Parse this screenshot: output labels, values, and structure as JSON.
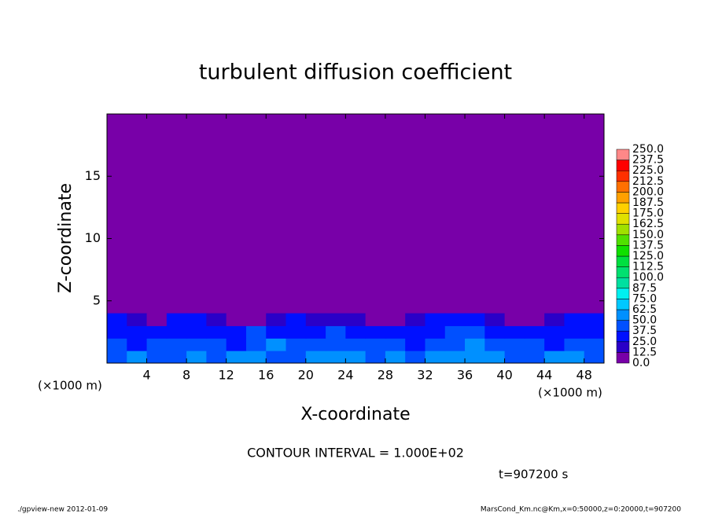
{
  "chart_data": {
    "type": "heatmap",
    "title": "turbulent diffusion coefficient",
    "x_label": "X-coordinate",
    "y_label": "Z-coordinate",
    "x_unit_label": "(×1000 m)",
    "y_unit_label": "(×1000 m)",
    "xlim": [
      0,
      50
    ],
    "ylim": [
      0,
      20
    ],
    "xticks": [
      4,
      8,
      12,
      16,
      20,
      24,
      28,
      32,
      36,
      40,
      44,
      48
    ],
    "yticks": [
      5,
      10,
      15
    ],
    "x": [
      1,
      3,
      5,
      7,
      9,
      11,
      13,
      15,
      17,
      19,
      21,
      23,
      25,
      27,
      29,
      31,
      33,
      35,
      37,
      39,
      41,
      43,
      45,
      47,
      49
    ],
    "y": [
      0.5,
      1.5,
      2.5,
      3.5
    ],
    "z": [
      [
        45,
        50,
        40,
        48,
        52,
        45,
        55,
        50,
        42,
        48,
        55,
        60,
        50,
        45,
        52,
        48,
        50,
        55,
        58,
        50,
        45,
        48,
        52,
        50,
        46
      ],
      [
        40,
        35,
        45,
        38,
        40,
        42,
        35,
        45,
        50,
        40,
        38,
        45,
        40,
        42,
        38,
        35,
        40,
        48,
        50,
        42,
        40,
        38,
        35,
        40,
        42
      ],
      [
        35,
        30,
        32,
        28,
        35,
        30,
        25,
        40,
        35,
        30,
        32,
        38,
        30,
        28,
        35,
        30,
        32,
        40,
        45,
        35,
        30,
        28,
        30,
        32,
        35
      ],
      [
        30,
        20,
        10,
        25,
        28,
        15,
        10,
        12,
        18,
        30,
        15,
        20,
        15,
        10,
        12,
        18,
        25,
        30,
        35,
        15,
        10,
        8,
        20,
        25,
        30
      ]
    ],
    "levels": [
      {
        "value": 0,
        "label": "0.0"
      },
      {
        "value": 12.5,
        "label": "12.5"
      },
      {
        "value": 25,
        "label": "25.0"
      },
      {
        "value": 37.5,
        "label": "37.5"
      },
      {
        "value": 50,
        "label": "50.0"
      },
      {
        "value": 62.5,
        "label": "62.5"
      },
      {
        "value": 75,
        "label": "75.0"
      },
      {
        "value": 87.5,
        "label": "87.5"
      },
      {
        "value": 100,
        "label": "100.0"
      },
      {
        "value": 112.5,
        "label": "112.5"
      },
      {
        "value": 125,
        "label": "125.0"
      },
      {
        "value": 137.5,
        "label": "137.5"
      },
      {
        "value": 150,
        "label": "150.0"
      },
      {
        "value": 162.5,
        "label": "162.5"
      },
      {
        "value": 175,
        "label": "175.0"
      },
      {
        "value": 187.5,
        "label": "187.5"
      },
      {
        "value": 200,
        "label": "200.0"
      },
      {
        "value": 212.5,
        "label": "212.5"
      },
      {
        "value": 225,
        "label": "225.0"
      },
      {
        "value": 237.5,
        "label": "237.5"
      },
      {
        "value": 250,
        "label": "250.0"
      }
    ],
    "colors": [
      "#7800a8",
      "#2a00c8",
      "#0010ff",
      "#0050ff",
      "#0090ff",
      "#00c8ff",
      "#00f0f0",
      "#00e0a0",
      "#00e070",
      "#00e040",
      "#10e000",
      "#50e000",
      "#a0e000",
      "#e0e000",
      "#ffd000",
      "#ffa000",
      "#ff7000",
      "#ff3000",
      "#ff0000",
      "#ff8888"
    ],
    "contour_note": "CONTOUR INTERVAL = 1.000E+02",
    "time_label": "t=907200 s",
    "footer_left": "./gpview-new  2012-01-09",
    "footer_right": "MarsCond_Km.nc@Km,x=0:50000,z=0:20000,t=907200"
  }
}
